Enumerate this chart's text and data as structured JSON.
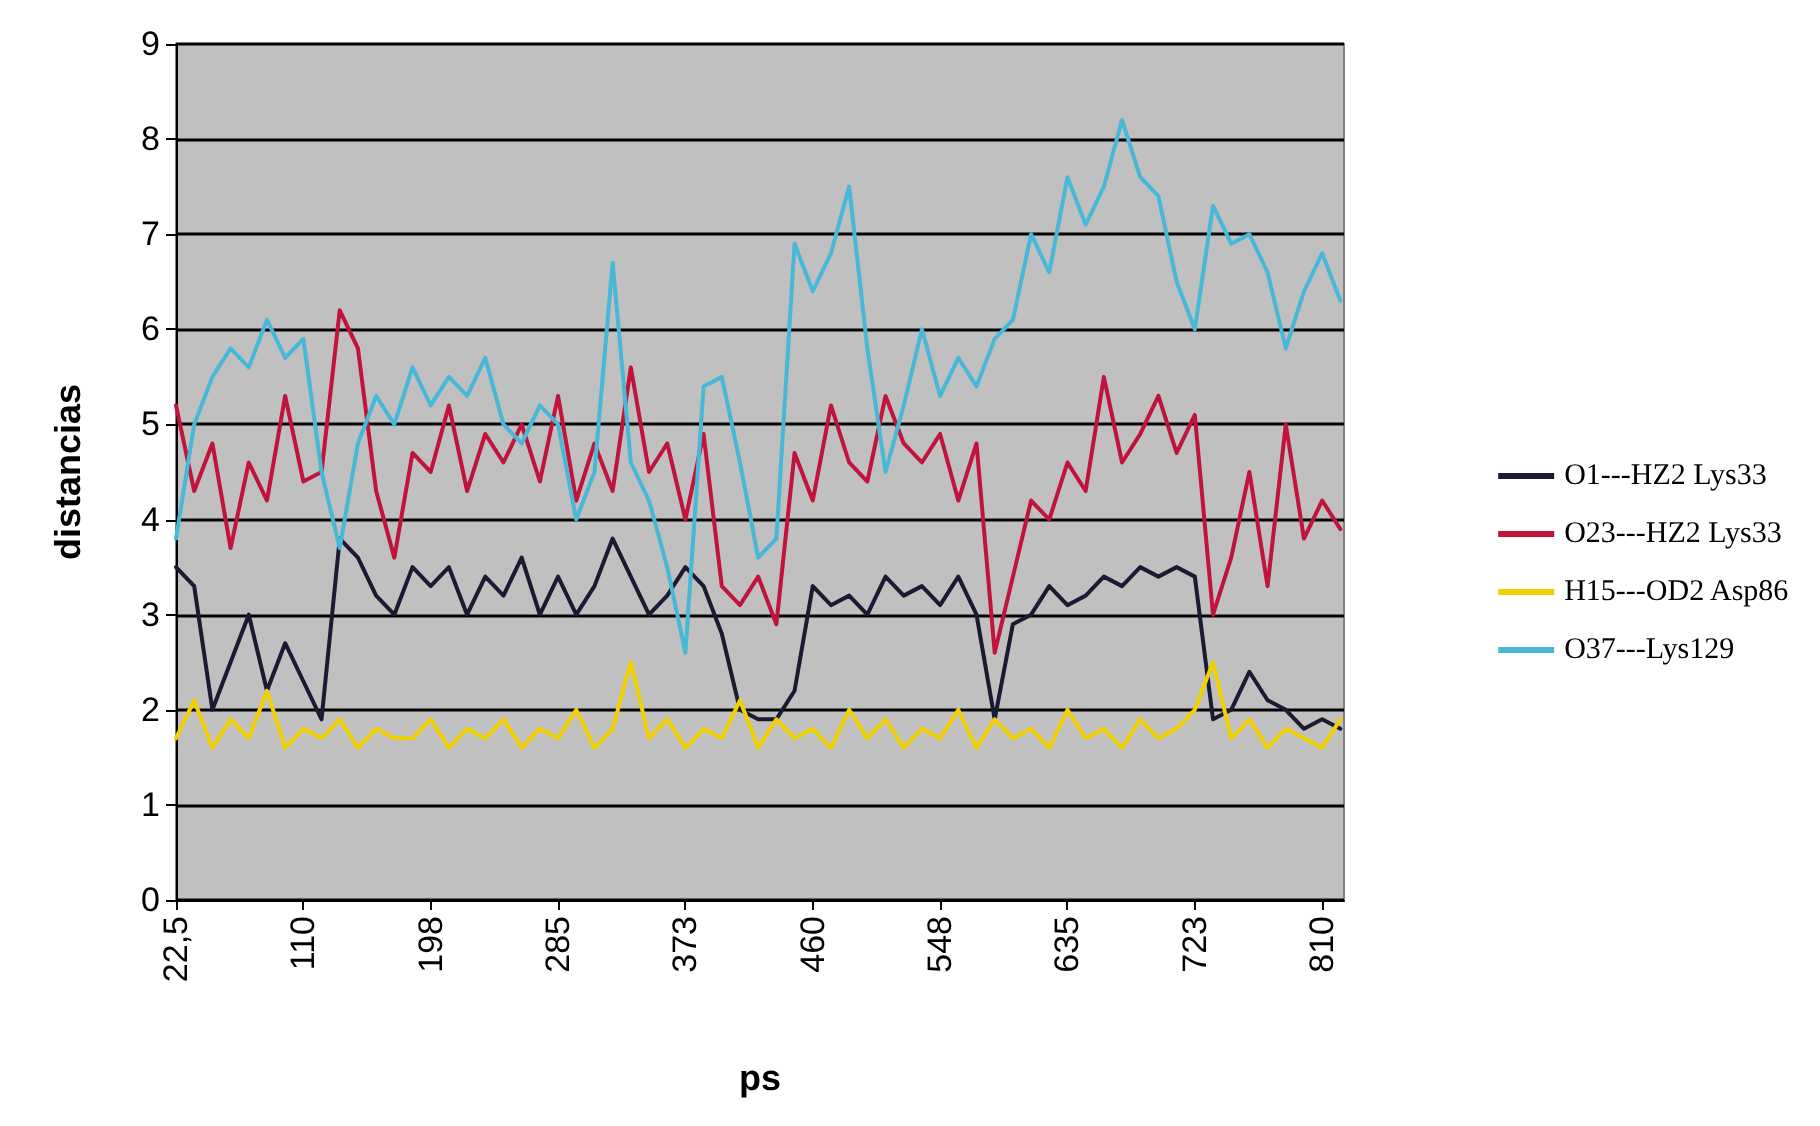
{
  "chart_data": {
    "type": "line",
    "xlabel": "ps",
    "ylabel": "distancias",
    "x": [
      22.5,
      35,
      47.5,
      60,
      72.5,
      85,
      97.5,
      110,
      122.5,
      135,
      147.5,
      160,
      172.5,
      185,
      197.5,
      210,
      222.5,
      235,
      247.5,
      260,
      272.5,
      285,
      297.5,
      310,
      322.5,
      335,
      347.5,
      360,
      372.5,
      385,
      397.5,
      410,
      422.5,
      435,
      447.5,
      460,
      472.5,
      485,
      497.5,
      510,
      522.5,
      535,
      547.5,
      560,
      572.5,
      585,
      597.5,
      610,
      622.5,
      635,
      647.5,
      660,
      672.5,
      685,
      697.5,
      710,
      722.5,
      735,
      747.5,
      760,
      772.5,
      785,
      797.5,
      810,
      822.5
    ],
    "series": [
      {
        "name": "O1---HZ2 Lys33",
        "color": "#1a1a33",
        "values": [
          3.5,
          3.3,
          2.0,
          2.5,
          3.0,
          2.2,
          2.7,
          2.3,
          1.9,
          3.8,
          3.6,
          3.2,
          3.0,
          3.5,
          3.3,
          3.5,
          3.0,
          3.4,
          3.2,
          3.6,
          3.0,
          3.4,
          3.0,
          3.3,
          3.8,
          3.4,
          3.0,
          3.2,
          3.5,
          3.3,
          2.8,
          2.0,
          1.9,
          1.9,
          2.2,
          3.3,
          3.1,
          3.2,
          3.0,
          3.4,
          3.2,
          3.3,
          3.1,
          3.4,
          3.0,
          1.9,
          2.9,
          3.0,
          3.3,
          3.1,
          3.2,
          3.4,
          3.3,
          3.5,
          3.4,
          3.5,
          3.4,
          1.9,
          2.0,
          2.4,
          2.1,
          2.0,
          1.8,
          1.9,
          1.8
        ]
      },
      {
        "name": "O23---HZ2 Lys33",
        "color": "#c0143c",
        "values": [
          5.2,
          4.3,
          4.8,
          3.7,
          4.6,
          4.2,
          5.3,
          4.4,
          4.5,
          6.2,
          5.8,
          4.3,
          3.6,
          4.7,
          4.5,
          5.2,
          4.3,
          4.9,
          4.6,
          5.0,
          4.4,
          5.3,
          4.2,
          4.8,
          4.3,
          5.6,
          4.5,
          4.8,
          4.0,
          4.9,
          3.3,
          3.1,
          3.4,
          2.9,
          4.7,
          4.2,
          5.2,
          4.6,
          4.4,
          5.3,
          4.8,
          4.6,
          4.9,
          4.2,
          4.8,
          2.6,
          3.4,
          4.2,
          4.0,
          4.6,
          4.3,
          5.5,
          4.6,
          4.9,
          5.3,
          4.7,
          5.1,
          3.0,
          3.6,
          4.5,
          3.3,
          5.0,
          3.8,
          4.2,
          3.9
        ]
      },
      {
        "name": "H15---OD2 Asp86",
        "color": "#f0d000",
        "values": [
          1.7,
          2.1,
          1.6,
          1.9,
          1.7,
          2.2,
          1.6,
          1.8,
          1.7,
          1.9,
          1.6,
          1.8,
          1.7,
          1.7,
          1.9,
          1.6,
          1.8,
          1.7,
          1.9,
          1.6,
          1.8,
          1.7,
          2.0,
          1.6,
          1.8,
          2.5,
          1.7,
          1.9,
          1.6,
          1.8,
          1.7,
          2.1,
          1.6,
          1.9,
          1.7,
          1.8,
          1.6,
          2.0,
          1.7,
          1.9,
          1.6,
          1.8,
          1.7,
          2.0,
          1.6,
          1.9,
          1.7,
          1.8,
          1.6,
          2.0,
          1.7,
          1.8,
          1.6,
          1.9,
          1.7,
          1.8,
          2.0,
          2.5,
          1.7,
          1.9,
          1.6,
          1.8,
          1.7,
          1.6,
          1.9
        ]
      },
      {
        "name": "O37---Lys129",
        "color": "#48b8d8",
        "values": [
          3.8,
          5.0,
          5.5,
          5.8,
          5.6,
          6.1,
          5.7,
          5.9,
          4.5,
          3.7,
          4.8,
          5.3,
          5.0,
          5.6,
          5.2,
          5.5,
          5.3,
          5.7,
          5.0,
          4.8,
          5.2,
          5.0,
          4.0,
          4.5,
          6.7,
          4.6,
          4.2,
          3.5,
          2.6,
          5.4,
          5.5,
          4.6,
          3.6,
          3.8,
          6.9,
          6.4,
          6.8,
          7.5,
          5.8,
          4.5,
          5.2,
          6.0,
          5.3,
          5.7,
          5.4,
          5.9,
          6.1,
          7.0,
          6.6,
          7.6,
          7.1,
          7.5,
          8.2,
          7.6,
          7.4,
          6.5,
          6.0,
          7.3,
          6.9,
          7.0,
          6.6,
          5.8,
          6.4,
          6.8,
          6.3
        ]
      }
    ],
    "xlim": [
      22.5,
      825
    ],
    "xticks": [
      {
        "value": 22.5,
        "label": "22,5"
      },
      110,
      {
        "value": 197.5,
        "label": "198"
      },
      285,
      {
        "value": 372.5,
        "label": "373"
      },
      460,
      {
        "value": 547.5,
        "label": "548"
      },
      635,
      {
        "value": 722.5,
        "label": "723"
      },
      810
    ],
    "ylim": [
      0,
      9
    ],
    "yticks": [
      0,
      1,
      2,
      3,
      4,
      5,
      6,
      7,
      8,
      9
    ],
    "grid": "y",
    "legend": "right",
    "marker": "none",
    "line_style": "solid"
  }
}
